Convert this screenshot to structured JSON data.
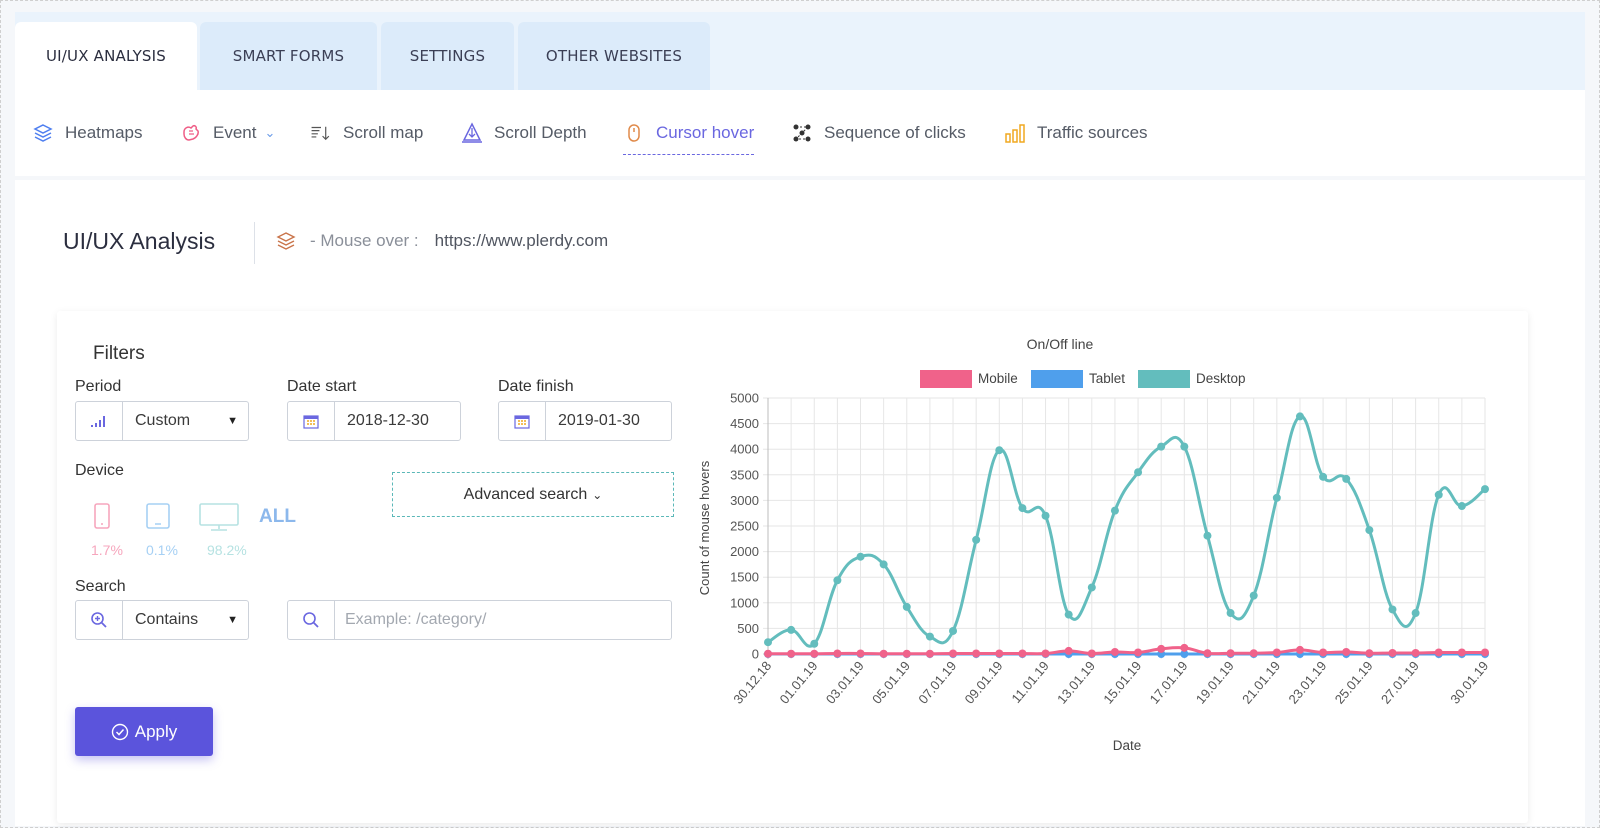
{
  "tabs": [
    {
      "label": "UI/UX ANALYSIS",
      "active": true
    },
    {
      "label": "SMART FORMS",
      "active": false
    },
    {
      "label": "SETTINGS",
      "active": false
    },
    {
      "label": "OTHER WEBSITES",
      "active": false
    }
  ],
  "subnav": [
    {
      "label": "Heatmaps",
      "icon": "layers-icon"
    },
    {
      "label": "Event",
      "icon": "event-hand-icon"
    },
    {
      "label": "Scroll map",
      "icon": "scroll-map-icon"
    },
    {
      "label": "Scroll Depth",
      "icon": "scroll-depth-icon"
    },
    {
      "label": "Cursor hover",
      "icon": "mouse-icon",
      "active": true
    },
    {
      "label": "Sequence of clicks",
      "icon": "sequence-icon"
    },
    {
      "label": "Traffic sources",
      "icon": "bar-chart-icon"
    }
  ],
  "page": {
    "title": "UI/UX Analysis",
    "mouse_over_label": "- Mouse over :",
    "url": "https://www.plerdy.com"
  },
  "filters": {
    "heading": "Filters",
    "period_label": "Period",
    "period_value": "Custom",
    "date_start_label": "Date start",
    "date_start_value": "2018-12-30",
    "date_finish_label": "Date finish",
    "date_finish_value": "2019-01-30",
    "device_label": "Device",
    "device_all": "ALL",
    "device_mobile_pct": "1.7%",
    "device_tablet_pct": "0.1%",
    "device_desktop_pct": "98.2%",
    "search_label": "Search",
    "search_mode": "Contains",
    "search_placeholder": "Example: /category/",
    "advanced_search": "Advanced search",
    "apply": "Apply"
  },
  "colors": {
    "accent": "#5b54dc",
    "mobile": "#f0628a",
    "tablet": "#4f9fec",
    "desktop": "#63bdbd"
  },
  "chart_data": {
    "type": "line",
    "title": "On/Off line",
    "xlabel": "Date",
    "ylabel": "Count of mouse hovers",
    "ylim": [
      0,
      5000
    ],
    "yticks": [
      "0",
      "500",
      "1000",
      "1500",
      "2000",
      "2500",
      "3000",
      "3500",
      "4000",
      "4500",
      "5000"
    ],
    "grid": true,
    "legend_position": "top",
    "x": [
      "30.12.18",
      "31.12.18",
      "01.01.19",
      "02.01.19",
      "03.01.19",
      "04.01.19",
      "05.01.19",
      "06.01.19",
      "07.01.19",
      "08.01.19",
      "09.01.19",
      "10.01.19",
      "11.01.19",
      "12.01.19",
      "13.01.19",
      "14.01.19",
      "15.01.19",
      "16.01.19",
      "17.01.19",
      "18.01.19",
      "19.01.19",
      "20.01.19",
      "21.01.19",
      "22.01.19",
      "23.01.19",
      "24.01.19",
      "25.01.19",
      "26.01.19",
      "27.01.19",
      "28.01.19",
      "29.01.19",
      "30.01.19"
    ],
    "x_tick_labels": [
      "30.12.18",
      "01.01.19",
      "03.01.19",
      "05.01.19",
      "07.01.19",
      "09.01.19",
      "11.01.19",
      "13.01.19",
      "15.01.19",
      "17.01.19",
      "19.01.19",
      "21.01.19",
      "23.01.19",
      "25.01.19",
      "27.01.19",
      "30.01.19"
    ],
    "series": [
      {
        "name": "Mobile",
        "values": [
          5,
          5,
          5,
          10,
          10,
          5,
          5,
          5,
          10,
          10,
          10,
          10,
          10,
          60,
          10,
          40,
          30,
          100,
          120,
          15,
          15,
          15,
          30,
          80,
          30,
          40,
          15,
          20,
          20,
          30,
          30,
          30
        ]
      },
      {
        "name": "Tablet",
        "values": [
          0,
          0,
          0,
          0,
          0,
          0,
          0,
          0,
          0,
          0,
          0,
          0,
          0,
          0,
          0,
          0,
          0,
          0,
          0,
          0,
          0,
          0,
          0,
          0,
          0,
          0,
          0,
          0,
          0,
          0,
          0,
          0
        ]
      },
      {
        "name": "Desktop",
        "values": [
          230,
          470,
          200,
          1440,
          1900,
          1750,
          920,
          340,
          450,
          2230,
          3980,
          2850,
          2700,
          770,
          1300,
          2800,
          3550,
          4050,
          4050,
          2310,
          800,
          1140,
          3050,
          4640,
          3460,
          3420,
          2420,
          870,
          800,
          3110,
          2890,
          3220
        ]
      }
    ]
  }
}
